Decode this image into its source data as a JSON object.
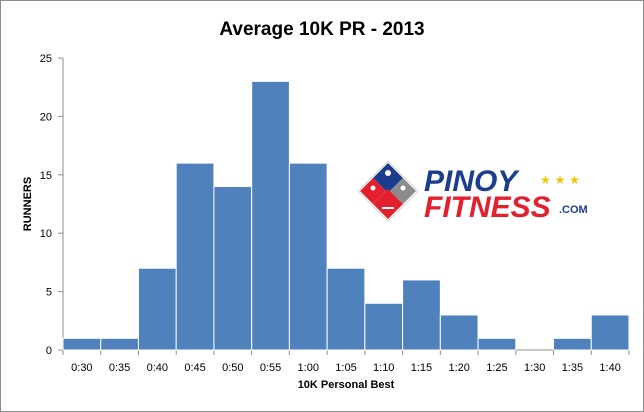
{
  "chart_data": {
    "type": "bar",
    "title": "Average 10K PR - 2013",
    "xlabel": "10K Personal Best",
    "ylabel": "RUNNERS",
    "categories": [
      "0:30",
      "0:35",
      "0:40",
      "0:45",
      "0:50",
      "0:55",
      "1:00",
      "1:05",
      "1:10",
      "1:15",
      "1:20",
      "1:25",
      "1:30",
      "1:35",
      "1:40"
    ],
    "values": [
      1,
      1,
      7,
      16,
      14,
      23,
      16,
      7,
      4,
      6,
      3,
      1,
      0,
      1,
      3
    ],
    "ylim": [
      0,
      25
    ],
    "yticks": [
      0,
      5,
      10,
      15,
      20,
      25
    ],
    "grid": false,
    "legend": "none",
    "bar_color": "#4f81bd"
  },
  "logo": {
    "text_line1": "PINOY",
    "text_line2": "FITNESS",
    "text_suffix": ".COM",
    "stars": "★ ★ ★",
    "color_blue": "#1c3d8f",
    "color_red": "#e3202e",
    "color_yellow": "#f2c500"
  }
}
